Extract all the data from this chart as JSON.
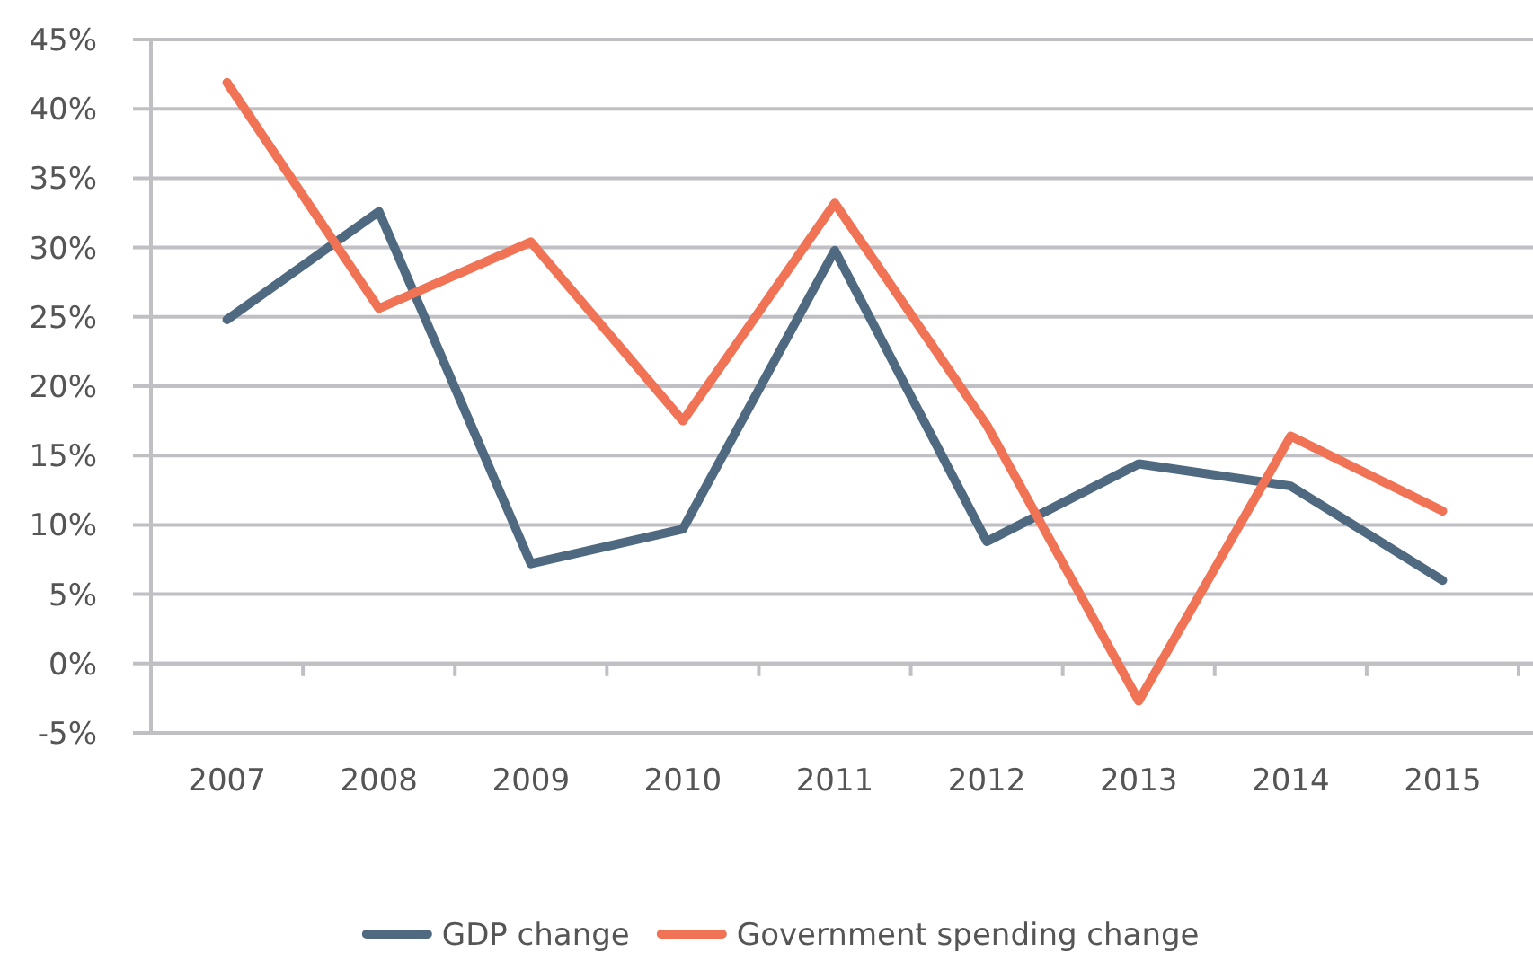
{
  "chart_data": {
    "type": "line",
    "categories": [
      "2007",
      "2008",
      "2009",
      "2010",
      "2011",
      "2012",
      "2013",
      "2014",
      "2015"
    ],
    "series": [
      {
        "name": "GDP change",
        "color": "#4f6a80",
        "values": [
          24.8,
          32.6,
          7.2,
          9.7,
          29.8,
          8.8,
          14.4,
          12.8,
          6.0
        ]
      },
      {
        "name": "Government spending change",
        "color": "#f07356",
        "values": [
          41.9,
          25.6,
          30.4,
          17.5,
          33.2,
          17.2,
          -2.7,
          16.4,
          11.0
        ]
      }
    ],
    "ylim": [
      -5,
      45
    ],
    "yticks": [
      {
        "value": -5,
        "label": "-5%"
      },
      {
        "value": 0,
        "label": "0%"
      },
      {
        "value": 5,
        "label": "5%"
      },
      {
        "value": 10,
        "label": "10%"
      },
      {
        "value": 15,
        "label": "15%"
      },
      {
        "value": 20,
        "label": "20%"
      },
      {
        "value": 25,
        "label": "25%"
      },
      {
        "value": 30,
        "label": "30%"
      },
      {
        "value": 35,
        "label": "35%"
      },
      {
        "value": 40,
        "label": "40%"
      },
      {
        "value": 45,
        "label": "45%"
      }
    ],
    "grid": "y",
    "legend": "bottom",
    "marker": "none",
    "line_style": "solid"
  }
}
